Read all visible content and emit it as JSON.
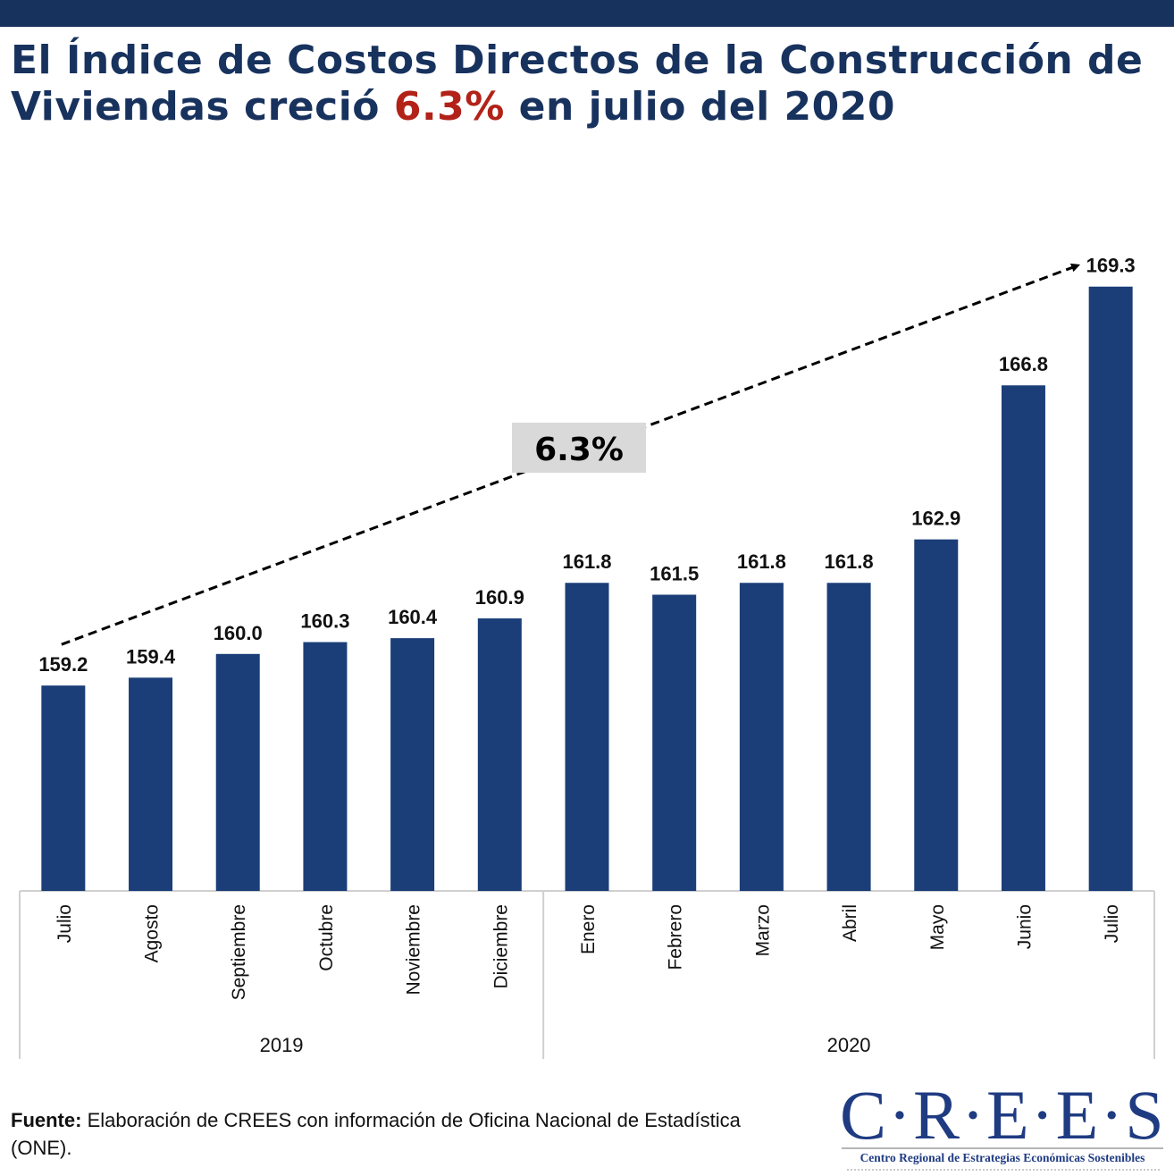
{
  "header": {
    "title_part1": "El Índice de Costos Directos de la Construcción de Viviendas creció ",
    "title_highlight": "6.3%",
    "title_part2": " en julio del 2020"
  },
  "colors": {
    "bar": "#1b3e78",
    "title": "#18325e",
    "highlight": "#b22218",
    "annotation_bg": "#d9d9d9",
    "axis": "#d0d0d0"
  },
  "chart_data": {
    "type": "bar",
    "title": "El Índice de Costos Directos de la Construcción de Viviendas creció 6.3% en julio del 2020",
    "xlabel": "",
    "ylabel": "",
    "ylim": [
      154,
      170
    ],
    "grid": false,
    "categories": [
      "Julio",
      "Agosto",
      "Septiembre",
      "Octubre",
      "Noviembre",
      "Diciembre",
      "Enero",
      "Febrero",
      "Marzo",
      "Abril",
      "Mayo",
      "Junio",
      "Julio"
    ],
    "values": [
      159.2,
      159.4,
      160.0,
      160.3,
      160.4,
      160.9,
      161.8,
      161.5,
      161.8,
      161.8,
      162.9,
      166.8,
      169.3
    ],
    "data_labels": [
      "159.2",
      "159.4",
      "160.0",
      "160.3",
      "160.4",
      "160.9",
      "161.8",
      "161.5",
      "161.8",
      "161.8",
      "162.9",
      "166.8",
      "169.3"
    ],
    "groups": [
      {
        "label": "2019",
        "count": 6
      },
      {
        "label": "2020",
        "count": 7
      }
    ],
    "annotation": {
      "text": "6.3%",
      "from_category_index": 0,
      "to_category_index": 12,
      "style": "dashed-arrow"
    }
  },
  "footer": {
    "source_label": "Fuente:",
    "source_text": " Elaboración de CREES con información de Oficina Nacional de Estadística (ONE).",
    "logo_mark": "C·R·E·E·S",
    "logo_subtitle": "Centro Regional de Estrategias Económicas Sostenibles"
  }
}
